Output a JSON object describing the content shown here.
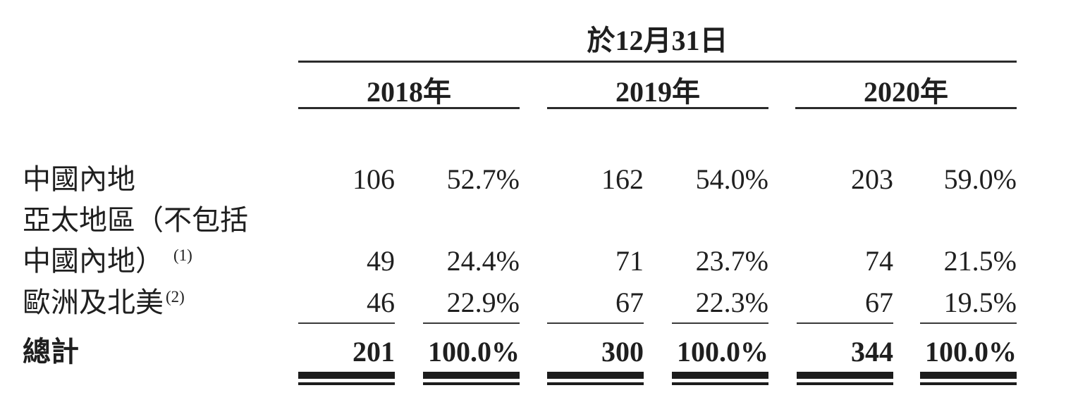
{
  "colors": {
    "background": "#ffffff",
    "text": "#1f1f1f",
    "rule": "#2b2b2b"
  },
  "table": {
    "date_spanner": "於12月31日",
    "year_headers": [
      "2018年",
      "2019年",
      "2020年"
    ],
    "rows": [
      {
        "label": "中國內地",
        "sup": "",
        "values": [
          "106",
          "52.7%",
          "162",
          "54.0%",
          "203",
          "59.0%"
        ]
      },
      {
        "label": "亞太地區（不包括",
        "sup": "",
        "values": [
          "",
          "",
          "",
          "",
          "",
          ""
        ]
      },
      {
        "label": "中國內地）",
        "sup": "(1)",
        "values": [
          "49",
          "24.4%",
          "71",
          "23.7%",
          "74",
          "21.5%"
        ]
      },
      {
        "label": "歐洲及北美",
        "sup": "(2)",
        "values": [
          "46",
          "22.9%",
          "67",
          "22.3%",
          "67",
          "19.5%"
        ]
      }
    ],
    "total": {
      "label": "總計",
      "values": [
        "201",
        "100.0%",
        "300",
        "100.0%",
        "344",
        "100.0%"
      ]
    }
  }
}
